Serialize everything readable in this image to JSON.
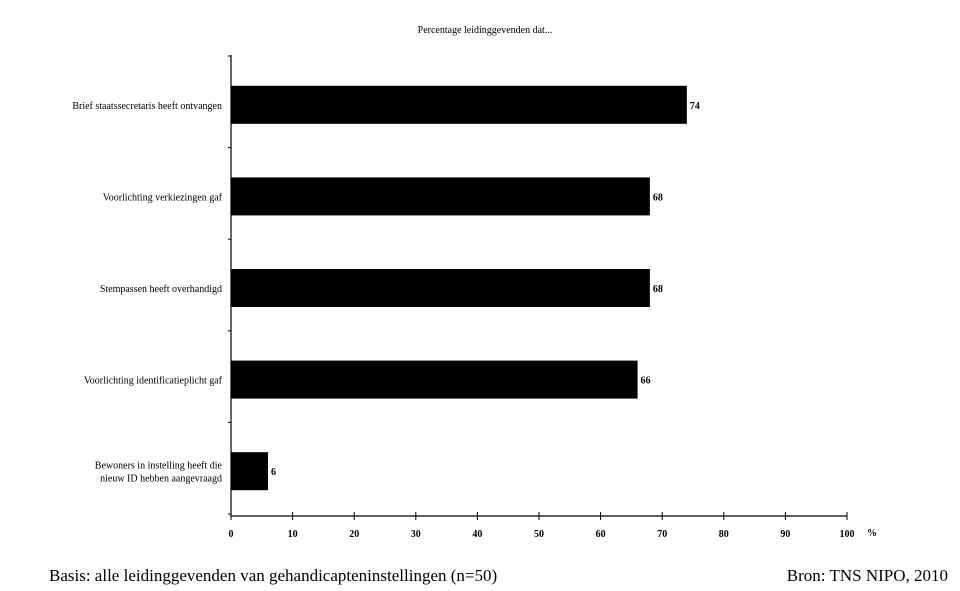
{
  "chart_data": {
    "type": "bar",
    "orientation": "horizontal",
    "title": "Percentage leidinggevenden dat...",
    "categories": [
      [
        "Brief staatssecretaris heeft ontvangen"
      ],
      [
        "Voorlichting verkiezingen gaf"
      ],
      [
        "Stempassen heeft overhandigd"
      ],
      [
        "Voorlichting identificatieplicht gaf"
      ],
      [
        "Bewoners in instelling heeft die",
        "nieuw ID hebben aangevraagd"
      ]
    ],
    "values": [
      74,
      68,
      68,
      66,
      6
    ],
    "xlim": [
      0,
      100
    ],
    "xticks": [
      0,
      10,
      20,
      30,
      40,
      50,
      60,
      70,
      80,
      90,
      100
    ],
    "x_unit": "%",
    "bar_color": "#000000",
    "grid": false
  },
  "footer": {
    "basis": "Basis: alle leidinggevenden van gehandicapteninstellingen (n=50)",
    "source": "Bron: TNS NIPO, 2010"
  }
}
